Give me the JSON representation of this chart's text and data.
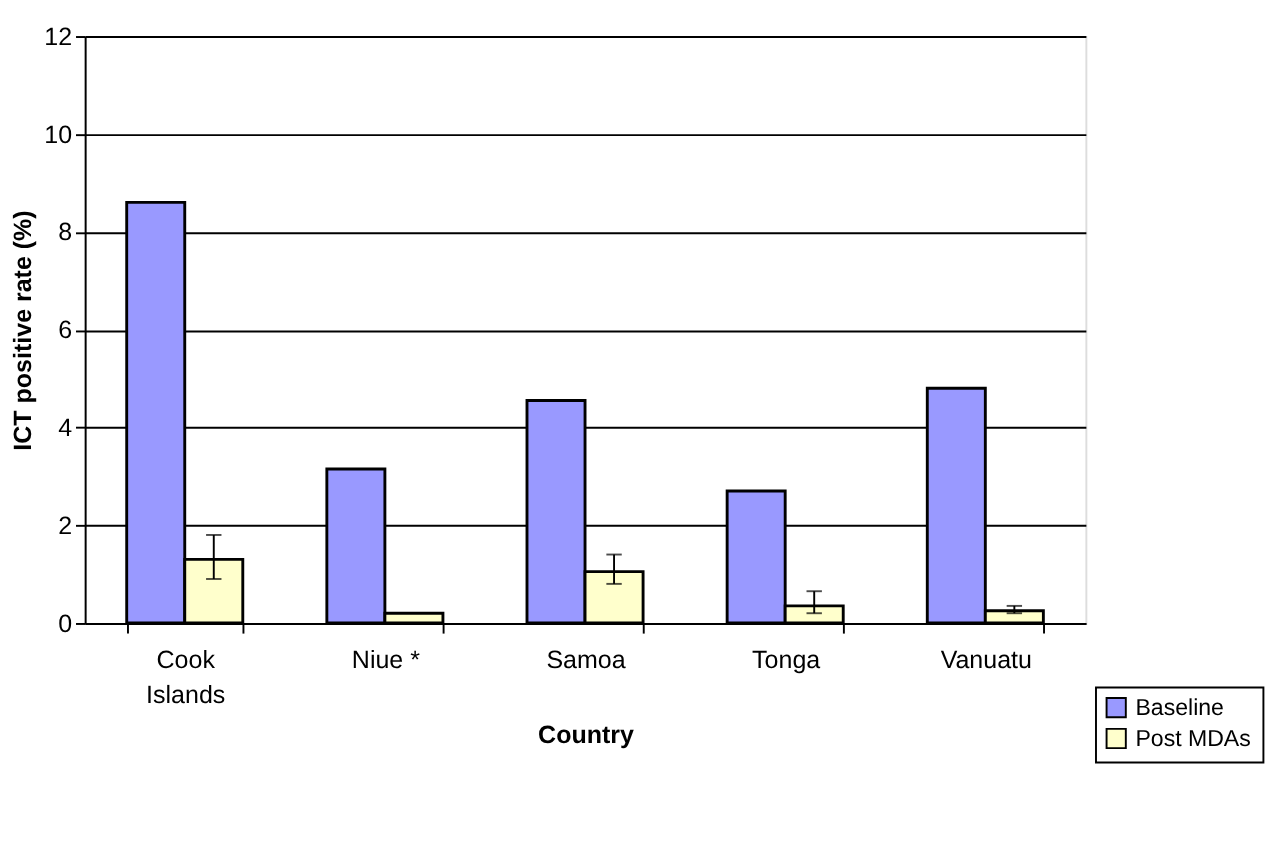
{
  "chart_data": {
    "type": "bar",
    "xlabel": "Country",
    "ylabel": "ICT positive rate (%)",
    "categories": [
      "Cook Islands",
      "Niue *",
      "Samoa",
      "Tonga",
      "Vanuatu"
    ],
    "series": [
      {
        "name": "Baseline",
        "color": "#9999ff",
        "values": [
          8.6,
          3.15,
          4.55,
          2.7,
          4.8
        ]
      },
      {
        "name": "Post MDAs",
        "color": "#ffffcc",
        "values": [
          1.3,
          0.2,
          1.05,
          0.35,
          0.25
        ],
        "errors": [
          [
            0.9,
            1.8
          ],
          null,
          [
            0.8,
            1.4
          ],
          [
            0.2,
            0.65
          ],
          [
            0.2,
            0.35
          ]
        ]
      }
    ],
    "ylim": [
      0,
      12
    ],
    "yticks": [
      0,
      2,
      4,
      6,
      8,
      10,
      12
    ],
    "grid": "y",
    "legend": "bottom right"
  }
}
